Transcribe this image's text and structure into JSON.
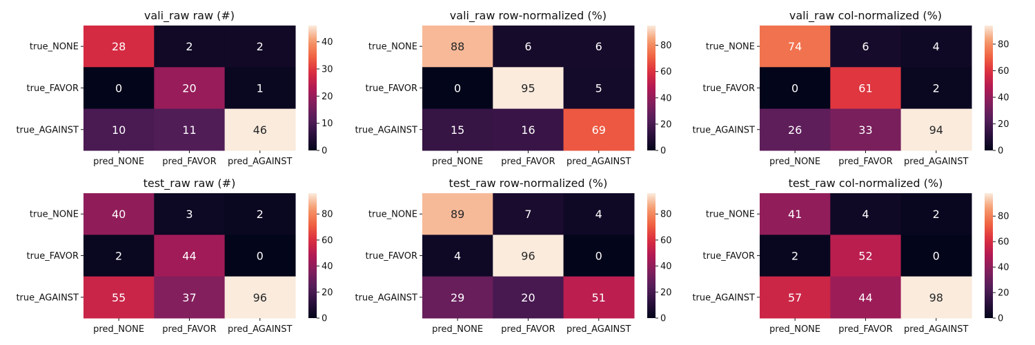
{
  "chart_data": [
    {
      "type": "heatmap",
      "title": "vali_raw raw (#)",
      "row_labels": [
        "true_NONE",
        "true_FAVOR",
        "true_AGAINST"
      ],
      "col_labels": [
        "pred_NONE",
        "pred_FAVOR",
        "pred_AGAINST"
      ],
      "values": [
        [
          28,
          2,
          2
        ],
        [
          0,
          20,
          1
        ],
        [
          10,
          11,
          46
        ]
      ],
      "colorbar": {
        "min": 0,
        "max": 46,
        "ticks": [
          0,
          10,
          20,
          30,
          40
        ]
      },
      "colormap": "rocket"
    },
    {
      "type": "heatmap",
      "title": "vali_raw row-normalized (%)",
      "row_labels": [
        "true_NONE",
        "true_FAVOR",
        "true_AGAINST"
      ],
      "col_labels": [
        "pred_NONE",
        "pred_FAVOR",
        "pred_AGAINST"
      ],
      "values": [
        [
          88,
          6,
          6
        ],
        [
          0,
          95,
          5
        ],
        [
          15,
          16,
          69
        ]
      ],
      "colorbar": {
        "min": 0,
        "max": 95,
        "ticks": [
          0,
          20,
          40,
          60,
          80
        ]
      },
      "colormap": "rocket"
    },
    {
      "type": "heatmap",
      "title": "vali_raw col-normalized (%)",
      "row_labels": [
        "true_NONE",
        "true_FAVOR",
        "true_AGAINST"
      ],
      "col_labels": [
        "pred_NONE",
        "pred_FAVOR",
        "pred_AGAINST"
      ],
      "values": [
        [
          74,
          6,
          4
        ],
        [
          0,
          61,
          2
        ],
        [
          26,
          33,
          94
        ]
      ],
      "colorbar": {
        "min": 0,
        "max": 94,
        "ticks": [
          0,
          20,
          40,
          60,
          80
        ]
      },
      "colormap": "rocket"
    },
    {
      "type": "heatmap",
      "title": "test_raw raw (#)",
      "row_labels": [
        "true_NONE",
        "true_FAVOR",
        "true_AGAINST"
      ],
      "col_labels": [
        "pred_NONE",
        "pred_FAVOR",
        "pred_AGAINST"
      ],
      "values": [
        [
          40,
          3,
          2
        ],
        [
          2,
          44,
          0
        ],
        [
          55,
          37,
          96
        ]
      ],
      "colorbar": {
        "min": 0,
        "max": 96,
        "ticks": [
          0,
          20,
          40,
          60,
          80
        ]
      },
      "colormap": "rocket"
    },
    {
      "type": "heatmap",
      "title": "test_raw row-normalized (%)",
      "row_labels": [
        "true_NONE",
        "true_FAVOR",
        "true_AGAINST"
      ],
      "col_labels": [
        "pred_NONE",
        "pred_FAVOR",
        "pred_AGAINST"
      ],
      "values": [
        [
          89,
          7,
          4
        ],
        [
          4,
          96,
          0
        ],
        [
          29,
          20,
          51
        ]
      ],
      "colorbar": {
        "min": 0,
        "max": 96,
        "ticks": [
          0,
          20,
          40,
          60,
          80
        ]
      },
      "colormap": "rocket"
    },
    {
      "type": "heatmap",
      "title": "test_raw col-normalized (%)",
      "row_labels": [
        "true_NONE",
        "true_FAVOR",
        "true_AGAINST"
      ],
      "col_labels": [
        "pred_NONE",
        "pred_FAVOR",
        "pred_AGAINST"
      ],
      "values": [
        [
          41,
          4,
          2
        ],
        [
          2,
          52,
          0
        ],
        [
          57,
          44,
          98
        ]
      ],
      "colorbar": {
        "min": 0,
        "max": 98,
        "ticks": [
          0,
          20,
          40,
          60,
          80
        ]
      },
      "colormap": "rocket"
    }
  ]
}
